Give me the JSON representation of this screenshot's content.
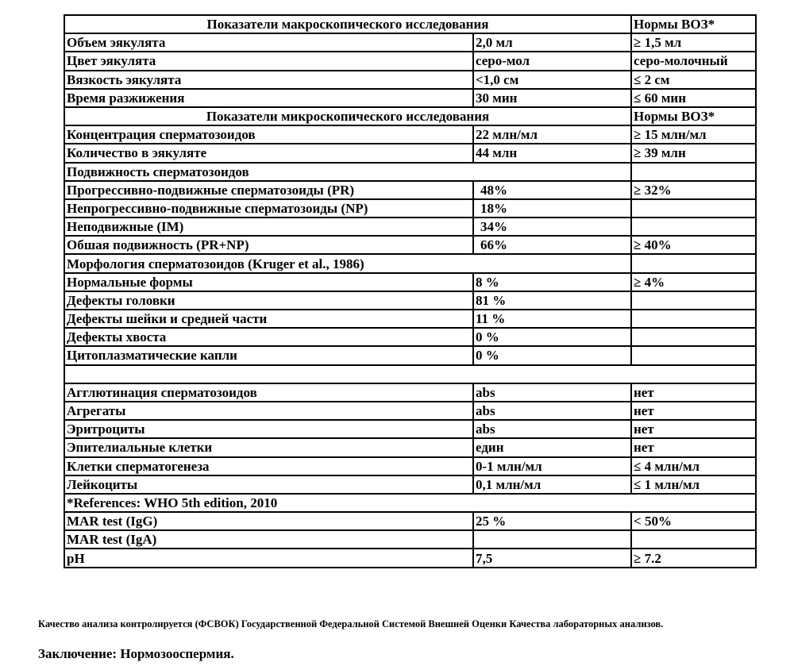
{
  "table": {
    "macro_header": "Показатели макроскопического исследования",
    "macro_norm_header": "Нормы ВОЗ*",
    "macro_rows": [
      {
        "label": "Объем эякулята",
        "value": "2,0 мл",
        "norm": "≥ 1,5 мл"
      },
      {
        "label": "Цвет эякулята",
        "value": "серо-мол",
        "norm": "серо-молочный"
      },
      {
        "label": "Вязкость эякулята",
        "value": "<1,0 см",
        "norm": "≤ 2 см"
      },
      {
        "label": "Время разжижения",
        "value": "30 мин",
        "norm": "≤ 60 мин"
      }
    ],
    "micro_header": "Показатели микроскопического исследования",
    "micro_norm_header": "Нормы ВОЗ*",
    "micro_rows": [
      {
        "label": "Концентрация сперматозоидов",
        "value": "22 млн/мл",
        "norm": "≥ 15 млн/мл"
      },
      {
        "label": "Количество  в эякуляте",
        "value": "44  млн",
        "norm": "≥ 39 млн"
      }
    ],
    "motility_header": "Подвижность сперматозоидов",
    "motility_rows": [
      {
        "label": "Прогрессивно-подвижные сперматозоиды (PR)",
        "value": "48%",
        "norm": "≥ 32%"
      },
      {
        "label": "Непрогрессивно-подвижные сперматозоиды (NP)",
        "value": "18%",
        "norm": ""
      },
      {
        "label": "Неподвижные  (IM)",
        "value": "34%",
        "norm": ""
      },
      {
        "label": "Обшая подвижность (PR+NP)",
        "value": "66%",
        "norm": "≥ 40%"
      }
    ],
    "morphology_header": "Морфология сперматозоидов (Kruger et al., 1986)",
    "morphology_rows": [
      {
        "label": "Нормальные формы",
        "value": "8 %",
        "norm": "≥ 4%"
      },
      {
        "label": "Дефекты  головки",
        "value": "81 %",
        "norm": ""
      },
      {
        "label": "Дефекты шейки и средней части",
        "value": "11 %",
        "norm": ""
      },
      {
        "label": "Дефекты  хвоста",
        "value": "0 %",
        "norm": ""
      },
      {
        "label": "Цитоплазматические капли",
        "value": "0 %",
        "norm": ""
      }
    ],
    "other_rows": [
      {
        "label": "Агглютинация сперматозоидов",
        "value": "abs",
        "norm": "нет"
      },
      {
        "label": "Агрегаты",
        "value": "abs",
        "norm": "нет"
      },
      {
        "label": "Эритроциты",
        "value": "abs",
        "norm": "нет"
      },
      {
        "label": "Эпителиальные  клетки",
        "value": "един",
        "norm": "нет"
      },
      {
        "label": "Клетки  сперматогенеза",
        "value": "0-1 млн/мл",
        "norm": "≤ 4 млн/мл"
      },
      {
        "label": "Лейкоциты",
        "value": "0,1 млн/мл",
        "norm": "≤ 1 млн/мл"
      }
    ],
    "references": "*References: WHO 5th edition, 2010",
    "mar_rows": [
      {
        "label": "MAR test (IgG)",
        "value": "25 %",
        "norm": "< 50%"
      },
      {
        "label": "MAR test (IgA)",
        "value": "",
        "norm": ""
      },
      {
        "label": "pH",
        "value": "7,5",
        "norm": "≥ 7.2"
      }
    ]
  },
  "footer": {
    "quality_note": "Качество анализа контролируется (ФСВОК) Государственной Федеральной Системой Внешней Оценки Качества  лабораторных анализов.",
    "conclusion": "Заключение: Нормозооспермия."
  }
}
